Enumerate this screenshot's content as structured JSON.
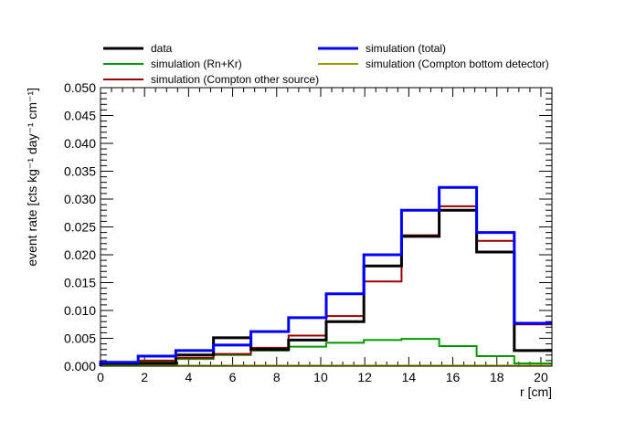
{
  "chart_data": {
    "type": "line",
    "style": "step-histogram",
    "xlabel": "r [cm]",
    "ylabel": "event rate [cts kg⁻¹ day⁻¹ cm⁻¹]",
    "xlim": [
      0,
      20.5
    ],
    "ylim": [
      0,
      0.05
    ],
    "x_ticks": [
      "0",
      "2",
      "4",
      "6",
      "8",
      "10",
      "12",
      "14",
      "16",
      "18",
      "20"
    ],
    "y_ticks": [
      "0.000",
      "0.005",
      "0.010",
      "0.015",
      "0.020",
      "0.025",
      "0.030",
      "0.035",
      "0.040",
      "0.045",
      "0.050"
    ],
    "bin_edges": [
      0,
      1.71,
      3.42,
      5.13,
      6.83,
      8.54,
      10.25,
      11.96,
      13.67,
      15.38,
      17.08,
      18.79,
      20.5
    ],
    "grid": false,
    "legend_position": "top",
    "series": [
      {
        "name": "data",
        "color": "#000000",
        "width": 3,
        "values": [
          0.0005,
          0.0005,
          0.002,
          0.0051,
          0.003,
          0.0047,
          0.008,
          0.018,
          0.0233,
          0.028,
          0.0205,
          0.0028
        ]
      },
      {
        "name": "simulation (total)",
        "color": "#0000ff",
        "width": 3,
        "values": [
          0.0007,
          0.0018,
          0.0028,
          0.0038,
          0.0062,
          0.0087,
          0.013,
          0.02,
          0.028,
          0.0321,
          0.024,
          0.0077
        ]
      },
      {
        "name": "simulation (Rn+Kr)",
        "color": "#009900",
        "width": 2,
        "values": [
          0.0003,
          0.0008,
          0.0013,
          0.002,
          0.0028,
          0.0035,
          0.0042,
          0.0047,
          0.0049,
          0.0036,
          0.0018,
          0.0005
        ]
      },
      {
        "name": "simulation (Compton bottom detector)",
        "color": "#999900",
        "width": 2,
        "values": [
          0.0001,
          0.0001,
          0.0001,
          0.0001,
          0.0001,
          0.0001,
          0.0001,
          0.0001,
          0.0001,
          0.0001,
          0.0001,
          0.0001
        ]
      },
      {
        "name": "simulation (Compton other source)",
        "color": "#990000",
        "width": 2,
        "values": [
          0.0005,
          0.001,
          0.0015,
          0.0022,
          0.0033,
          0.0055,
          0.009,
          0.0152,
          0.0235,
          0.0287,
          0.0225,
          0.0075
        ]
      }
    ]
  }
}
